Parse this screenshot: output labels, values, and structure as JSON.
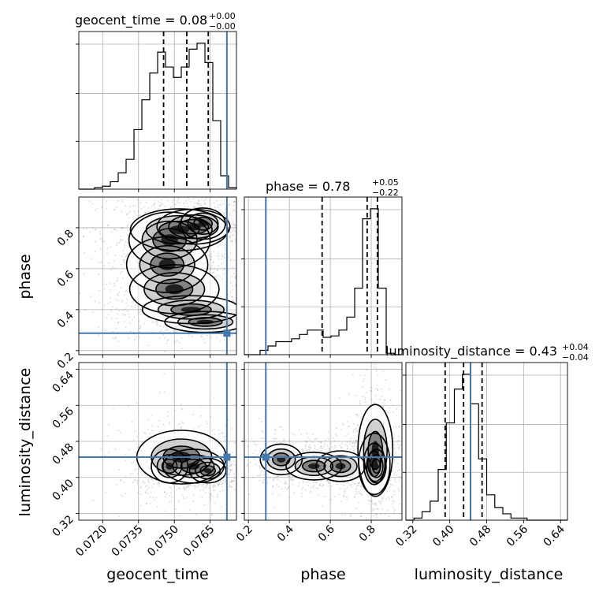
{
  "chart_data": {
    "type": "corner",
    "parameters": [
      "geocent_time",
      "phase",
      "luminosity_distance"
    ],
    "injection": {
      "geocent_time": 0.0772,
      "phase": 0.285,
      "luminosity_distance": 0.445
    },
    "colors": {
      "truth": "#4477aa",
      "hist": "#000000",
      "grid": "#b0b0b0",
      "scatter": "#555555"
    },
    "titles": [
      {
        "name": "geocent_time",
        "text": "geocent_time = 0.08",
        "sup": "+0.00",
        "sub": "−0.00"
      },
      {
        "name": "phase",
        "text": "phase = 0.78",
        "sup": "+0.05",
        "sub": "−0.22"
      },
      {
        "name": "luminosity_distance",
        "text": "luminosity_distance = 0.43",
        "sup": "+0.04",
        "sub": "−0.04"
      }
    ],
    "axis_labels": {
      "x": [
        "geocent_time",
        "phase",
        "luminosity_distance"
      ],
      "y": [
        "phase",
        "luminosity_distance"
      ]
    },
    "ranges": {
      "geocent_time": [
        0.071,
        0.0776
      ],
      "phase": [
        0.18,
        0.95
      ],
      "luminosity_distance": [
        0.305,
        0.655
      ]
    },
    "ticks": {
      "geocent_time": {
        "values": [
          0.072,
          0.0735,
          0.075,
          0.0765
        ],
        "labels": [
          "0.0720",
          "0.0735",
          "0.0750",
          "0.0765"
        ]
      },
      "phase": {
        "values": [
          0.2,
          0.4,
          0.6,
          0.8
        ],
        "labels": [
          "0.2",
          "0.4",
          "0.6",
          "0.8"
        ]
      },
      "luminosity_distance": {
        "values": [
          0.32,
          0.4,
          0.48,
          0.56,
          0.64
        ],
        "labels": [
          "0.32",
          "0.40",
          "0.48",
          "0.56",
          "0.64"
        ]
      }
    },
    "quantiles": {
      "geocent_time": [
        0.07455,
        0.07552,
        0.07642
      ],
      "phase": [
        0.56,
        0.78,
        0.83
      ],
      "luminosity_distance": [
        0.39,
        0.43,
        0.47
      ]
    },
    "histograms": {
      "geocent_time": {
        "edges": [
          0.071,
          0.07133,
          0.07166,
          0.07199,
          0.07232,
          0.07265,
          0.07298,
          0.07331,
          0.07364,
          0.07397,
          0.0743,
          0.07463,
          0.07496,
          0.07529,
          0.07562,
          0.07595,
          0.07628,
          0.07661,
          0.07694,
          0.07727,
          0.0776
        ],
        "counts": [
          0,
          0,
          1,
          2,
          5,
          11,
          20,
          40,
          60,
          78,
          92,
          82,
          75,
          82,
          94,
          98,
          85,
          46,
          9,
          1
        ]
      },
      "phase": {
        "edges": [
          0.18,
          0.2185,
          0.257,
          0.2955,
          0.334,
          0.3725,
          0.411,
          0.4495,
          0.488,
          0.5265,
          0.565,
          0.6035,
          0.642,
          0.6805,
          0.719,
          0.7575,
          0.796,
          0.8345,
          0.873,
          0.9115,
          0.95
        ],
        "counts": [
          0,
          0,
          3,
          6,
          9,
          9,
          11,
          14,
          17,
          17,
          12,
          13,
          17,
          26,
          46,
          94,
          101,
          46,
          1,
          0
        ]
      },
      "luminosity_distance": {
        "edges": [
          0.305,
          0.3225,
          0.34,
          0.3575,
          0.375,
          0.3925,
          0.41,
          0.4275,
          0.445,
          0.4625,
          0.48,
          0.4975,
          0.515,
          0.5325,
          0.55,
          0.5675,
          0.585,
          0.6025,
          0.62,
          0.6375,
          0.655
        ],
        "counts": [
          0,
          1,
          4,
          9,
          24,
          46,
          62,
          69,
          55,
          29,
          12,
          6,
          3,
          1,
          1,
          0,
          0,
          0,
          0,
          0
        ]
      }
    },
    "density_2d": {
      "phase_vs_geocent_time": [
        {
          "x": 0.0762,
          "y": 0.82,
          "wx": 0.00055,
          "wy": 0.045
        },
        {
          "x": 0.0758,
          "y": 0.805,
          "wx": 0.0009,
          "wy": 0.05
        },
        {
          "x": 0.0752,
          "y": 0.79,
          "wx": 0.0012,
          "wy": 0.06
        },
        {
          "x": 0.0748,
          "y": 0.74,
          "wx": 0.001,
          "wy": 0.08
        },
        {
          "x": 0.0747,
          "y": 0.62,
          "wx": 0.001,
          "wy": 0.08
        },
        {
          "x": 0.075,
          "y": 0.5,
          "wx": 0.0011,
          "wy": 0.07
        },
        {
          "x": 0.0757,
          "y": 0.4,
          "wx": 0.0012,
          "wy": 0.04
        },
        {
          "x": 0.0763,
          "y": 0.34,
          "wx": 0.001,
          "wy": 0.03
        }
      ],
      "luminosity_distance_vs_geocent_time": [
        {
          "x": 0.0764,
          "y": 0.415,
          "wx": 0.00045,
          "wy": 0.016
        },
        {
          "x": 0.0758,
          "y": 0.425,
          "wx": 0.00075,
          "wy": 0.022
        },
        {
          "x": 0.0748,
          "y": 0.425,
          "wx": 0.00045,
          "wy": 0.022
        },
        {
          "x": 0.0753,
          "y": 0.445,
          "wx": 0.0011,
          "wy": 0.035
        }
      ],
      "luminosity_distance_vs_phase": [
        {
          "x": 0.825,
          "y": 0.425,
          "wx": 0.028,
          "wy": 0.022
        },
        {
          "x": 0.815,
          "y": 0.43,
          "wx": 0.045,
          "wy": 0.04
        },
        {
          "x": 0.82,
          "y": 0.46,
          "wx": 0.05,
          "wy": 0.06
        },
        {
          "x": 0.52,
          "y": 0.425,
          "wx": 0.08,
          "wy": 0.018
        },
        {
          "x": 0.36,
          "y": 0.44,
          "wx": 0.06,
          "wy": 0.02
        },
        {
          "x": 0.65,
          "y": 0.425,
          "wx": 0.07,
          "wy": 0.02
        }
      ]
    }
  }
}
